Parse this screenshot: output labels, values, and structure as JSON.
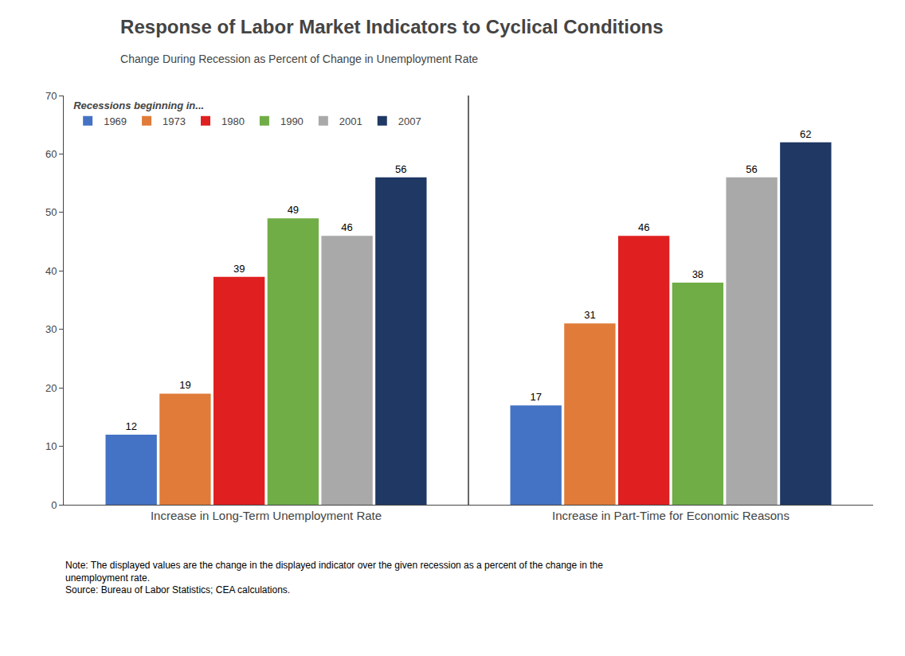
{
  "chart_data": {
    "type": "bar",
    "title": "Response of Labor Market Indicators to Cyclical Conditions",
    "subtitle": "Change During Recession as Percent of Change in Unemployment Rate",
    "legend_title": "Recessions beginning in...",
    "categories": [
      "Increase in Long-Term Unemployment Rate",
      "Increase in Part-Time for Economic Reasons"
    ],
    "series": [
      {
        "name": "1969",
        "color": "#4472C4",
        "values": [
          12,
          17
        ]
      },
      {
        "name": "1973",
        "color": "#E07B39",
        "values": [
          19,
          31
        ]
      },
      {
        "name": "1980",
        "color": "#E02020",
        "values": [
          39,
          46
        ]
      },
      {
        "name": "1990",
        "color": "#70AD47",
        "values": [
          49,
          38
        ]
      },
      {
        "name": "2001",
        "color": "#A9A9A9",
        "values": [
          46,
          56
        ]
      },
      {
        "name": "2007",
        "color": "#1F3864",
        "values": [
          56,
          62
        ]
      }
    ],
    "ylim": [
      0,
      70
    ],
    "yticks": [
      0,
      10,
      20,
      30,
      40,
      50,
      60,
      70
    ],
    "data_labels": true,
    "legend": "upper left",
    "grid": false,
    "note": "Note: The displayed values are the change in the displayed indicator over the given recession as a percent of the change in the\nunemployment rate.\nSource: Bureau of Labor Statistics; CEA calculations."
  }
}
